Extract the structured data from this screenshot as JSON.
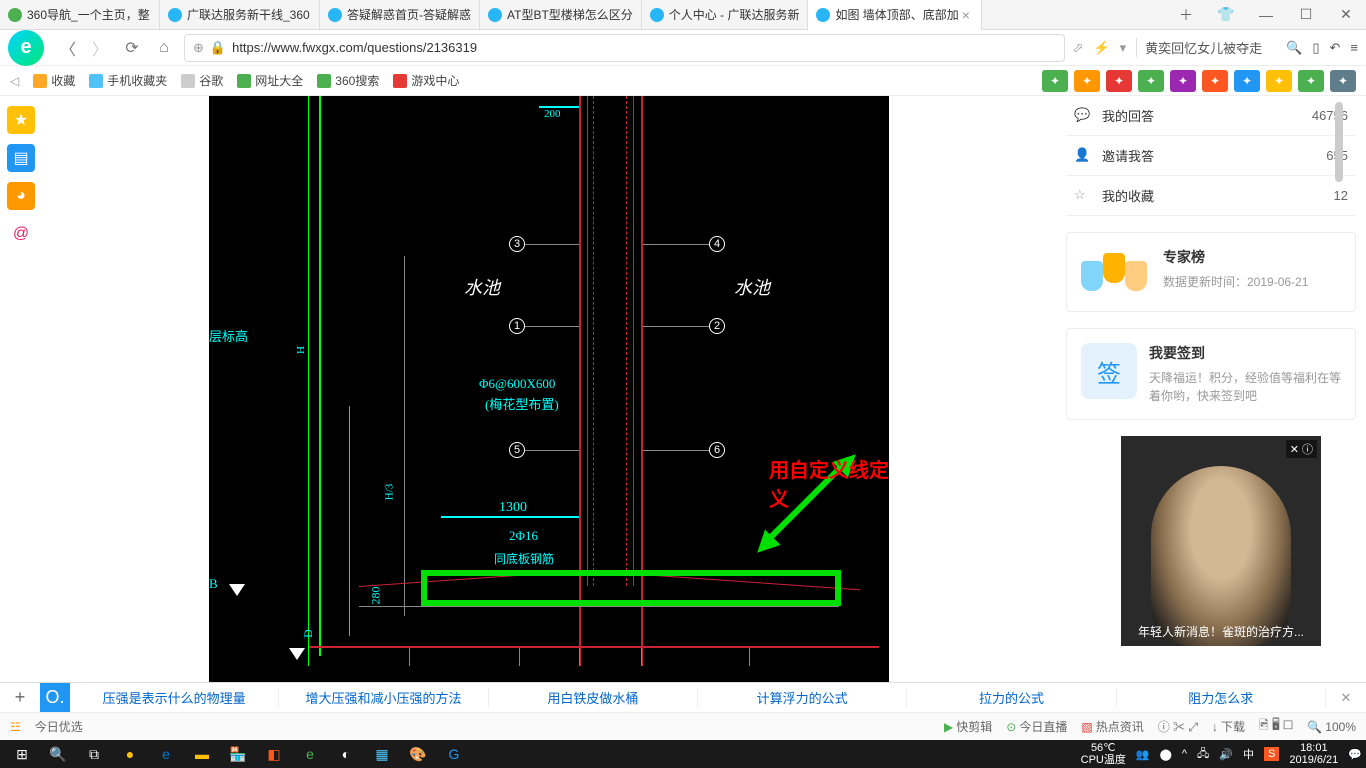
{
  "tabs": [
    {
      "label": "360导航_一个主页，整",
      "icon": "#4caf50"
    },
    {
      "label": "广联达服务新干线_360",
      "icon": "#29b6f6"
    },
    {
      "label": "答疑解惑首页-答疑解惑",
      "icon": "#29b6f6"
    },
    {
      "label": "AT型BT型楼梯怎么区分",
      "icon": "#29b6f6"
    },
    {
      "label": "个人中心 - 广联达服务新",
      "icon": "#29b6f6"
    },
    {
      "label": "如图 墙体顶部、底部加",
      "icon": "#29b6f6",
      "active": true
    }
  ],
  "url": "https://www.fwxgx.com/questions/2136319",
  "search_hint": "黄奕回忆女儿被夺走",
  "bookmarks": [
    {
      "label": "收藏",
      "icon": "#ffa726"
    },
    {
      "label": "手机收藏夹",
      "icon": "#4fc3f7"
    },
    {
      "label": "谷歌",
      "icon": "#ccc"
    },
    {
      "label": "网址大全",
      "icon": "#4caf50"
    },
    {
      "label": "360搜索",
      "icon": "#4caf50"
    },
    {
      "label": "游戏中心",
      "icon": "#e53935"
    }
  ],
  "ext_colors": [
    "#4caf50",
    "#ff9800",
    "#e53935",
    "#4caf50",
    "#9c27b0",
    "#ff5722",
    "#2196f3",
    "#ffc107",
    "#4caf50",
    "#607d8b"
  ],
  "sidebar_icons": [
    {
      "bg": "#ffc107",
      "g": "★"
    },
    {
      "bg": "#2196f3",
      "g": "▤"
    },
    {
      "bg": "#ff9800",
      "g": "◕"
    },
    {
      "bg": "#fff",
      "g": "@",
      "color": "#e91e63"
    }
  ],
  "stats": [
    {
      "icon": "💬",
      "label": "我的回答",
      "count": "46756"
    },
    {
      "icon": "👤",
      "label": "邀请我答",
      "count": "655"
    },
    {
      "icon": "☆",
      "label": "我的收藏",
      "count": "12"
    }
  ],
  "expert": {
    "title": "专家榜",
    "sub": "数据更新时间：2019-06-21"
  },
  "signin": {
    "title": "我要签到",
    "icon": "签",
    "sub": "天降福运！积分，经验值等福利在等着你哟，快来签到吧"
  },
  "ad_text": "年轻人新消息！雀斑的治疗方...",
  "hot_links": [
    "压强是表示什么的物理量",
    "增大压强和减小压强的方法",
    "用白铁皮做水桶",
    "计算浮力的公式",
    "拉力的公式",
    "阻力怎么求"
  ],
  "today_pick": "今日优选",
  "status_items": [
    "快剪辑",
    "今日直播",
    "热点资讯"
  ],
  "download": "下载",
  "zoom": "100%",
  "temp": "56℃",
  "temp_lbl": "CPU温度",
  "time": "18:01",
  "date": "2019/6/21",
  "cad": {
    "dim_200": "200",
    "dim_1300": "1300",
    "dim_280": "280",
    "pool": "水池",
    "spec1": "Φ6@600X600",
    "spec2": "(梅花型布置)",
    "spec3": "2Φ16",
    "spec4": "同底板钢筋",
    "lvl": "层标高",
    "H": "H",
    "H3": "H/3",
    "B": "B",
    "D": "D",
    "red_label": "用自定义线定义"
  }
}
